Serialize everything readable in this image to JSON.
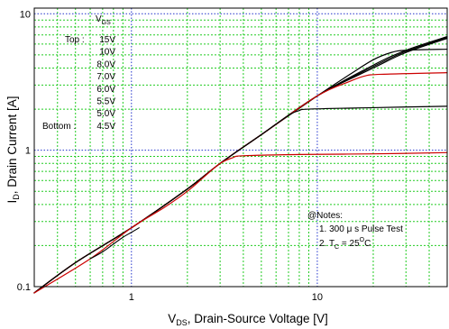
{
  "chart_data": {
    "type": "line",
    "x_scale": "log",
    "y_scale": "log",
    "xlim": [
      0.3,
      50
    ],
    "ylim": [
      0.1,
      11
    ],
    "grid": true,
    "xlabel": {
      "main": "V",
      "sub": "DS",
      "rest": ", Drain-Source Voltage [V]"
    },
    "ylabel": {
      "main": "I",
      "sub": "D",
      "rest": ", Drain Current [A]"
    },
    "x_ticks": [
      {
        "value": 1,
        "label": "1"
      },
      {
        "value": 10,
        "label": "10"
      }
    ],
    "y_ticks": [
      {
        "value": 0.1,
        "label": "0.1"
      },
      {
        "value": 1,
        "label": "1"
      },
      {
        "value": 10,
        "label": "10"
      }
    ],
    "legend": {
      "placement": "top-left",
      "header": {
        "main": "V",
        "sub": "GS"
      },
      "top_label": "Top :",
      "bottom_label": "Bottom :",
      "entries": [
        "15V",
        "10V",
        "8.0V",
        "7.0V",
        "6.0V",
        "5.5V",
        "5.0V",
        "4.5V"
      ]
    },
    "notes": {
      "title": "@Notes:",
      "line1": "1. 300 μ s Pulse Test",
      "line2_pre": "2. T",
      "line2_sub": "C",
      "line2_mid": " = 25",
      "line2_sup": "O",
      "line2_post": "C"
    },
    "colors": {
      "black": "#000000",
      "red": "#cc0000",
      "grid_minor": "#22cc22",
      "grid_major": "#2233cc"
    },
    "series": [
      {
        "color": "#000000",
        "width": 1.2,
        "points": [
          [
            0.3,
            0.09
          ],
          [
            0.5,
            0.15
          ],
          [
            1,
            0.27
          ],
          [
            2,
            0.52
          ],
          [
            3,
            0.8
          ],
          [
            5,
            1.3
          ],
          [
            10,
            2.5
          ],
          [
            20,
            4.2
          ],
          [
            30,
            5.4
          ],
          [
            50,
            6.8
          ]
        ]
      },
      {
        "color": "#000000",
        "width": 1.2,
        "points": [
          [
            0.3,
            0.09
          ],
          [
            0.5,
            0.15
          ],
          [
            1,
            0.27
          ],
          [
            2,
            0.52
          ],
          [
            3,
            0.8
          ],
          [
            5,
            1.3
          ],
          [
            10,
            2.5
          ],
          [
            20,
            4.1
          ],
          [
            30,
            5.3
          ],
          [
            50,
            6.7
          ]
        ]
      },
      {
        "color": "#000000",
        "width": 1.2,
        "points": [
          [
            0.3,
            0.09
          ],
          [
            0.5,
            0.15
          ],
          [
            1,
            0.27
          ],
          [
            2,
            0.52
          ],
          [
            3,
            0.8
          ],
          [
            5,
            1.3
          ],
          [
            10,
            2.5
          ],
          [
            20,
            4.0
          ],
          [
            30,
            5.2
          ],
          [
            50,
            6.6
          ]
        ]
      },
      {
        "color": "#000000",
        "width": 1.2,
        "points": [
          [
            0.3,
            0.09
          ],
          [
            0.5,
            0.15
          ],
          [
            1,
            0.27
          ],
          [
            2,
            0.52
          ],
          [
            3,
            0.8
          ],
          [
            5,
            1.3
          ],
          [
            10,
            2.5
          ],
          [
            15,
            3.6
          ],
          [
            20,
            4.6
          ],
          [
            25,
            5.2
          ],
          [
            30,
            5.4
          ],
          [
            50,
            5.5
          ]
        ]
      },
      {
        "color": "#cc0000",
        "width": 1.2,
        "points": [
          [
            0.3,
            0.09
          ],
          [
            0.5,
            0.15
          ],
          [
            1,
            0.27
          ],
          [
            2,
            0.52
          ],
          [
            3,
            0.8
          ],
          [
            5,
            1.3
          ],
          [
            10,
            2.5
          ],
          [
            15,
            3.2
          ],
          [
            18,
            3.5
          ],
          [
            22,
            3.6
          ],
          [
            50,
            3.7
          ]
        ]
      },
      {
        "color": "#000000",
        "width": 1.2,
        "points": [
          [
            0.3,
            0.09
          ],
          [
            0.5,
            0.15
          ],
          [
            1,
            0.27
          ],
          [
            2,
            0.52
          ],
          [
            3,
            0.8
          ],
          [
            5,
            1.3
          ],
          [
            7,
            1.8
          ],
          [
            8,
            1.95
          ],
          [
            9,
            2.0
          ],
          [
            20,
            2.05
          ],
          [
            50,
            2.1
          ]
        ]
      },
      {
        "color": "#cc0000",
        "width": 1.2,
        "points": [
          [
            0.3,
            0.09
          ],
          [
            0.6,
            0.16
          ],
          [
            1,
            0.27
          ],
          [
            1.5,
            0.38
          ],
          [
            2,
            0.5
          ],
          [
            2.5,
            0.65
          ],
          [
            3,
            0.8
          ],
          [
            3.5,
            0.88
          ],
          [
            4,
            0.91
          ],
          [
            8,
            0.93
          ],
          [
            20,
            0.94
          ],
          [
            50,
            0.96
          ]
        ]
      },
      {
        "color": "#000000",
        "width": 1.1,
        "points": [
          [
            0.6,
            0.16
          ],
          [
            0.7,
            0.18
          ],
          [
            0.8,
            0.205
          ],
          [
            0.9,
            0.23
          ],
          [
            1,
            0.25
          ],
          [
            1.1,
            0.27
          ]
        ]
      }
    ]
  }
}
